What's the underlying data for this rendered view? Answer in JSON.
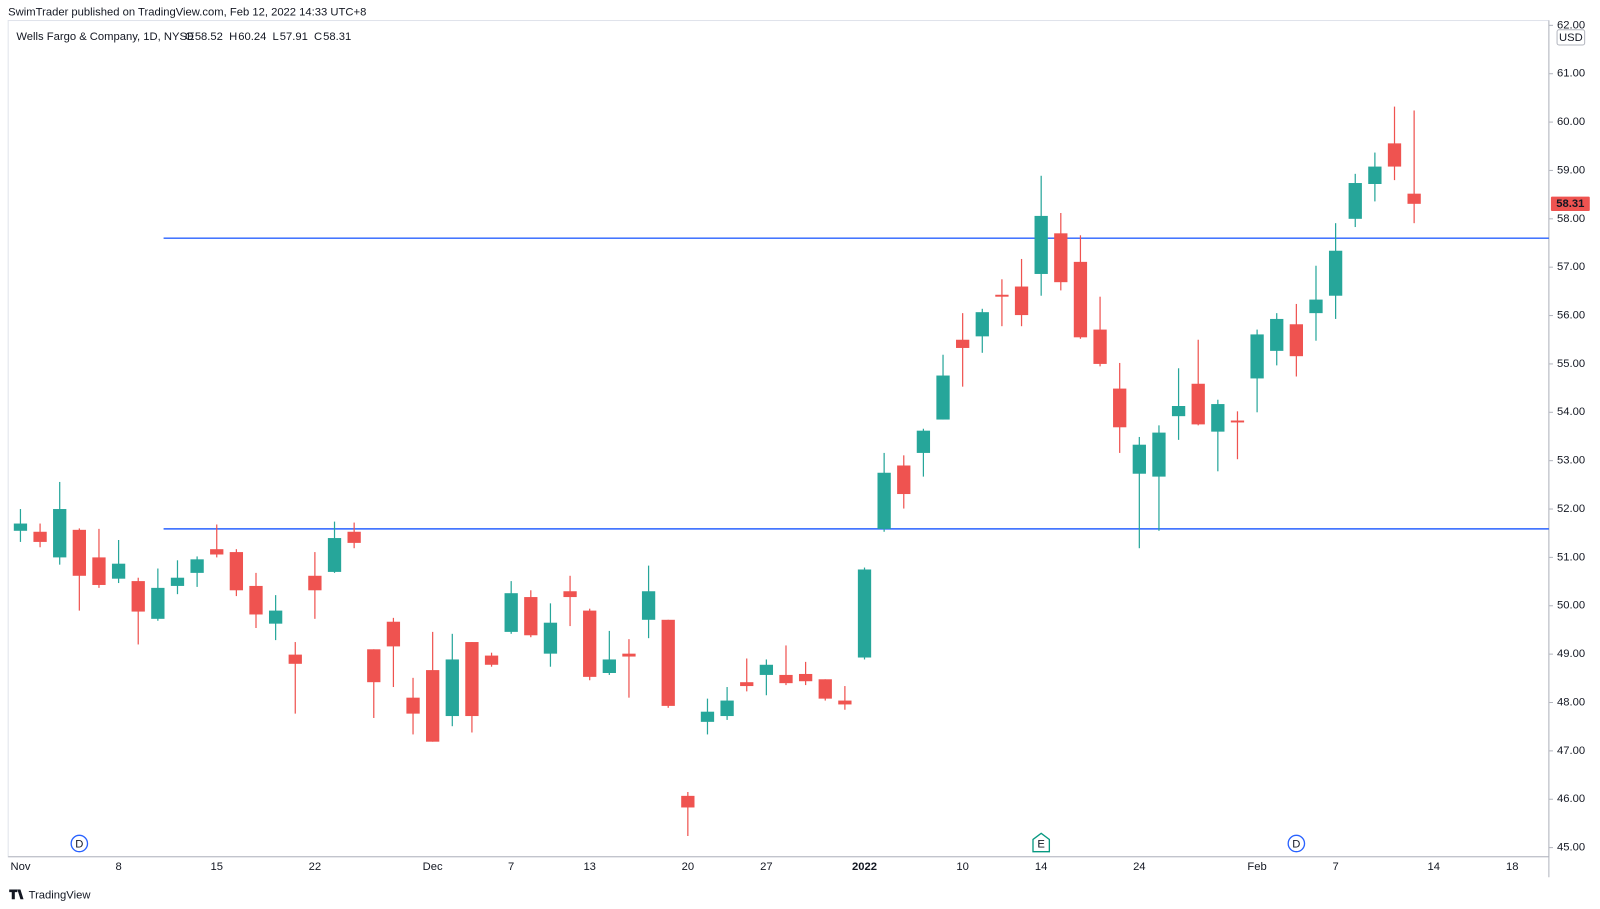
{
  "chart_data": {
    "type": "candlestick",
    "publisher_note": "SwimTrader published on TradingView.com, Feb 12, 2022 14:33 UTC+8",
    "title": "Wells Fargo & Company, 1D, NYSE",
    "ohlc": [
      {
        "label": "O",
        "value": 58.52
      },
      {
        "label": "H",
        "value": 60.24
      },
      {
        "label": "L",
        "value": 57.91
      },
      {
        "label": "C",
        "value": 58.31
      }
    ],
    "currency": "USD",
    "brand": "TradingView",
    "up_color": "#26a69a",
    "down_color": "#ef5350",
    "hline_color": "#2962ff",
    "hlines": [
      57.6,
      51.59
    ],
    "categories": [
      "Nov",
      null,
      null,
      null,
      null,
      "8",
      null,
      null,
      null,
      null,
      "15",
      null,
      null,
      null,
      null,
      "22",
      null,
      null,
      null,
      null,
      null,
      "Dec",
      null,
      null,
      null,
      "7",
      null,
      null,
      null,
      "13",
      null,
      null,
      null,
      null,
      "20",
      null,
      null,
      null,
      "27",
      null,
      null,
      null,
      null,
      "2022",
      null,
      null,
      null,
      null,
      "10",
      null,
      null,
      null,
      "14",
      null,
      null,
      null,
      null,
      "24",
      null,
      null,
      null,
      null,
      null,
      "Feb",
      null,
      null,
      null,
      "7",
      null,
      null,
      null,
      null,
      "14",
      null,
      null,
      null,
      "18"
    ],
    "event_markers": [
      null,
      null,
      null,
      "D",
      null,
      null,
      null,
      null,
      null,
      null,
      null,
      null,
      null,
      null,
      null,
      null,
      null,
      null,
      null,
      null,
      null,
      null,
      null,
      null,
      null,
      null,
      null,
      null,
      null,
      null,
      null,
      null,
      null,
      null,
      null,
      null,
      null,
      null,
      null,
      null,
      null,
      null,
      null,
      null,
      null,
      null,
      null,
      null,
      null,
      null,
      null,
      null,
      "E",
      null,
      null,
      null,
      null,
      null,
      null,
      null,
      null,
      null,
      null,
      null,
      null,
      "D",
      null,
      null,
      null,
      null,
      null,
      null,
      null,
      null,
      null,
      null,
      null
    ],
    "open": [
      51.55,
      51.53,
      51.0,
      51.57,
      51.0,
      50.56,
      50.51,
      49.73,
      50.41,
      50.68,
      51.17,
      51.11,
      50.41,
      49.63,
      48.99,
      50.62,
      50.7,
      51.53,
      49.1,
      49.67,
      48.1,
      48.67,
      47.72,
      49.25,
      48.97,
      49.46,
      50.18,
      49.01,
      50.3,
      49.9,
      48.61,
      49.01,
      49.71,
      49.71,
      46.07,
      47.6,
      47.72,
      48.42,
      48.57,
      48.57,
      48.59,
      48.48,
      48.04,
      48.93,
      51.59,
      52.9,
      53.16,
      53.85,
      55.5,
      55.57,
      56.43,
      56.6,
      56.86,
      57.7,
      57.11,
      55.71,
      54.49,
      52.73,
      52.67,
      53.92,
      54.59,
      53.6,
      53.83,
      54.7,
      55.27,
      55.82,
      56.05,
      56.41,
      58.0,
      58.72,
      59.56,
      58.52,
      null,
      null,
      null,
      null,
      null
    ],
    "high": [
      52.0,
      51.7,
      52.56,
      51.6,
      51.59,
      51.36,
      50.58,
      50.77,
      50.94,
      51.02,
      51.68,
      51.17,
      50.68,
      50.22,
      49.25,
      51.11,
      51.74,
      51.72,
      49.1,
      49.75,
      48.51,
      49.46,
      49.42,
      49.25,
      49.03,
      50.51,
      50.32,
      50.05,
      50.62,
      49.94,
      49.48,
      49.31,
      50.83,
      49.71,
      46.15,
      48.08,
      48.32,
      48.91,
      48.89,
      49.18,
      48.84,
      48.48,
      48.34,
      50.79,
      53.16,
      53.11,
      53.66,
      55.19,
      56.05,
      56.14,
      56.75,
      57.17,
      58.89,
      58.12,
      57.66,
      56.39,
      55.02,
      53.49,
      53.73,
      54.91,
      55.5,
      54.26,
      54.02,
      55.71,
      56.05,
      56.24,
      57.03,
      57.91,
      58.93,
      59.37,
      60.32,
      60.24,
      null,
      null,
      null,
      null,
      null
    ],
    "low": [
      51.32,
      51.21,
      50.85,
      49.9,
      50.37,
      50.47,
      49.2,
      49.69,
      50.24,
      50.39,
      51.0,
      50.2,
      49.54,
      49.29,
      47.77,
      49.73,
      50.68,
      51.19,
      47.68,
      48.32,
      47.34,
      47.19,
      47.51,
      47.38,
      48.74,
      49.42,
      49.35,
      48.74,
      49.58,
      48.46,
      48.57,
      48.1,
      49.33,
      47.89,
      45.24,
      47.34,
      47.64,
      48.23,
      48.15,
      48.36,
      48.36,
      48.04,
      47.85,
      48.89,
      51.53,
      52.01,
      52.67,
      53.85,
      54.53,
      55.23,
      55.78,
      55.78,
      56.41,
      56.52,
      55.52,
      54.95,
      53.16,
      51.19,
      51.55,
      53.43,
      53.73,
      52.78,
      53.03,
      54.0,
      54.97,
      54.74,
      55.48,
      55.93,
      57.83,
      58.36,
      58.8,
      57.91,
      null,
      null,
      null,
      null,
      null
    ],
    "close": [
      51.7,
      51.32,
      52.0,
      50.62,
      50.43,
      50.87,
      49.88,
      50.37,
      50.58,
      50.96,
      51.06,
      50.32,
      49.82,
      49.9,
      48.8,
      50.32,
      51.4,
      51.3,
      48.42,
      49.16,
      47.77,
      47.19,
      48.89,
      47.72,
      48.78,
      50.26,
      49.39,
      49.65,
      50.18,
      48.53,
      48.89,
      48.95,
      50.3,
      47.93,
      45.83,
      47.81,
      48.04,
      48.34,
      48.78,
      48.4,
      48.44,
      48.08,
      47.96,
      50.75,
      52.75,
      52.31,
      53.62,
      54.76,
      55.33,
      56.07,
      56.39,
      56.01,
      58.06,
      56.69,
      55.55,
      55.0,
      53.69,
      53.33,
      53.58,
      54.13,
      53.75,
      54.17,
      53.79,
      55.61,
      55.93,
      55.16,
      56.33,
      57.34,
      58.74,
      59.08,
      59.08,
      58.31,
      null,
      null,
      null,
      null,
      null
    ],
    "ylim": [
      44.81,
      62.1
    ],
    "yticks": [
      {
        "value": 45,
        "label": "45.00"
      },
      {
        "value": 46,
        "label": "46.00"
      },
      {
        "value": 47,
        "label": "47.00"
      },
      {
        "value": 48,
        "label": "48.00"
      },
      {
        "value": 49,
        "label": "49.00"
      },
      {
        "value": 50,
        "label": "50.00"
      },
      {
        "value": 51,
        "label": "51.00"
      },
      {
        "value": 52,
        "label": "52.00"
      },
      {
        "value": 53,
        "label": "53.00"
      },
      {
        "value": 54,
        "label": "54.00"
      },
      {
        "value": 55,
        "label": "55.00"
      },
      {
        "value": 56,
        "label": "56.00"
      },
      {
        "value": 57,
        "label": "57.00"
      },
      {
        "value": 58,
        "label": "58.00"
      },
      {
        "value": 59,
        "label": "59.00"
      },
      {
        "value": 60,
        "label": "60.00"
      },
      {
        "value": 61,
        "label": "61.00"
      },
      {
        "value": 62,
        "label": "62.00"
      }
    ]
  }
}
